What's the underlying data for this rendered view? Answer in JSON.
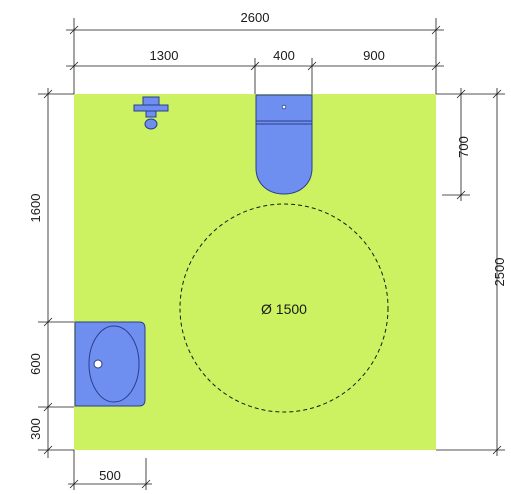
{
  "plan": {
    "floor_color": "#ccf262",
    "fixture_color": "#6f8ff0",
    "fixture_outline": "#2b3d8a",
    "turning_circle_label": "Ø 1500"
  },
  "dimensions": {
    "total_width": "2600",
    "seg_1": "1300",
    "seg_2": "400",
    "seg_3": "900",
    "left_upper": "1600",
    "left_middle": "600",
    "left_lower": "300",
    "right_top": "700",
    "right_total": "2500",
    "bottom": "500"
  },
  "fixtures": {
    "toilet": "toilet-icon",
    "washbasin": "washbasin-icon",
    "grab_tap": "tap-icon"
  }
}
